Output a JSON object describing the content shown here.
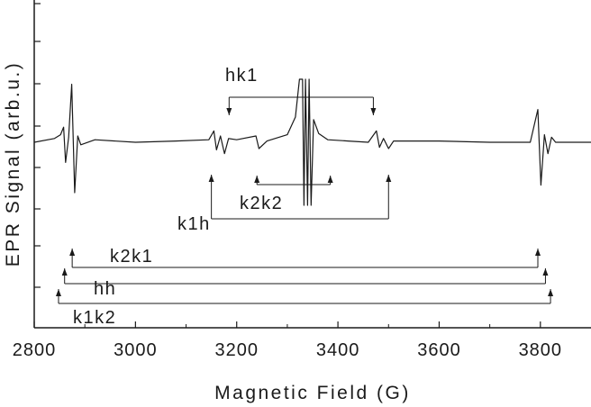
{
  "chart_data": {
    "type": "line",
    "title": "",
    "xlabel": "Magnetic Field (G)",
    "ylabel": "EPR Signal (arb.u.)",
    "xlim": [
      2800,
      3900
    ],
    "x_ticks": [
      "2800",
      "3000",
      "3200",
      "3400",
      "3600",
      "3800"
    ],
    "y_ticks_labeled": false,
    "grid": false,
    "series": [
      {
        "points": [
          [
            2800,
            0
          ],
          [
            2840,
            0.3
          ],
          [
            2852,
            0.6
          ],
          [
            2858,
            1.2
          ],
          [
            2862,
            -1.6
          ],
          [
            2868,
            0.4
          ],
          [
            2874,
            4.6
          ],
          [
            2880,
            -4.0
          ],
          [
            2886,
            0.5
          ],
          [
            2892,
            -0.2
          ],
          [
            2920,
            0.2
          ],
          [
            3000,
            0.0
          ],
          [
            3080,
            0.1
          ],
          [
            3145,
            0.2
          ],
          [
            3155,
            0.9
          ],
          [
            3160,
            -0.6
          ],
          [
            3168,
            0.5
          ],
          [
            3176,
            -0.9
          ],
          [
            3184,
            0.3
          ],
          [
            3200,
            0.2
          ],
          [
            3238,
            0.5
          ],
          [
            3244,
            -0.5
          ],
          [
            3260,
            0.1
          ],
          [
            3300,
            0.6
          ],
          [
            3316,
            2.0
          ],
          [
            3324,
            5.0
          ],
          [
            3330,
            5.0
          ],
          [
            3333,
            -5.0
          ],
          [
            3336,
            5.0
          ],
          [
            3340,
            -5.0
          ],
          [
            3343,
            5.0
          ],
          [
            3347,
            -5.0
          ],
          [
            3352,
            1.8
          ],
          [
            3362,
            0.7
          ],
          [
            3380,
            0.2
          ],
          [
            3420,
            0.1
          ],
          [
            3460,
            0.0
          ],
          [
            3476,
            0.9
          ],
          [
            3482,
            -0.4
          ],
          [
            3490,
            0.3
          ],
          [
            3500,
            -0.5
          ],
          [
            3510,
            0.1
          ],
          [
            3600,
            0.1
          ],
          [
            3700,
            0.0
          ],
          [
            3780,
            0.0
          ],
          [
            3795,
            2.6
          ],
          [
            3801,
            -3.4
          ],
          [
            3808,
            0.6
          ],
          [
            3815,
            -0.9
          ],
          [
            3822,
            0.4
          ],
          [
            3830,
            0.0
          ],
          [
            3900,
            0.0
          ]
        ]
      }
    ],
    "annotations": [
      {
        "label": "hk1",
        "pair_x": [
          3185,
          3470
        ],
        "arrow": "down"
      },
      {
        "label": "k2k2",
        "pair_x": [
          3240,
          3385
        ],
        "arrow": "up"
      },
      {
        "label": "k1h",
        "pair_x": [
          3150,
          3500
        ],
        "arrow": "up"
      },
      {
        "label": "k2k1",
        "pair_x": [
          2875,
          3795
        ],
        "arrow": "up"
      },
      {
        "label": "hh",
        "pair_x": [
          2860,
          3810
        ],
        "arrow": "up"
      },
      {
        "label": "k1k2",
        "pair_x": [
          2848,
          3820
        ],
        "arrow": "up"
      }
    ]
  }
}
